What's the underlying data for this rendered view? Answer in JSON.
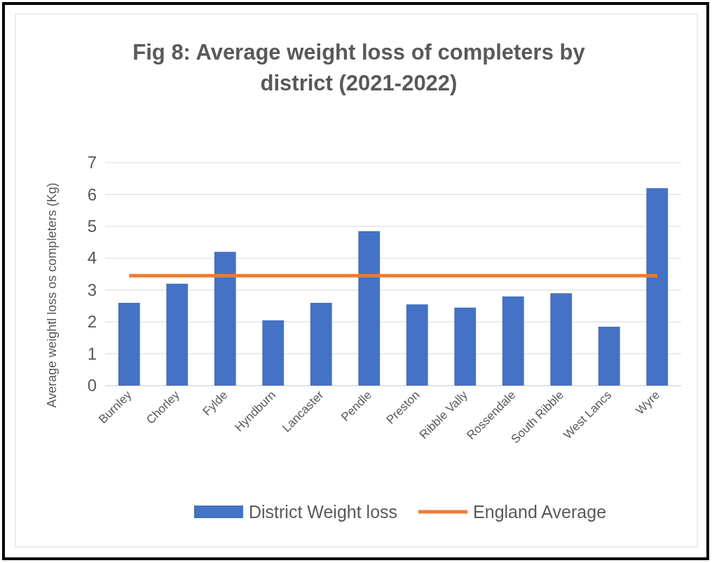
{
  "chart_data": {
    "type": "bar",
    "title": "Fig 8: Average weight loss of completers by district (2021-2022)",
    "ylabel": "Average weightl loss os completers (Kg)",
    "categories": [
      "Burnley",
      "Chorley",
      "Fylde",
      "Hyndburn",
      "Lancaster",
      "Pendle",
      "Preston",
      "Ribble Vally",
      "Rossendale",
      "South Ribble",
      "West Lancs",
      "Wyre"
    ],
    "series": [
      {
        "name": "District Weight loss",
        "color": "#4472c4",
        "values": [
          2.6,
          3.2,
          4.2,
          2.05,
          2.6,
          4.85,
          2.55,
          2.45,
          2.8,
          2.9,
          1.85,
          6.2
        ]
      },
      {
        "name": "England Average",
        "type": "line",
        "color": "#ed7d31",
        "values": [
          3.45,
          3.45,
          3.45,
          3.45,
          3.45,
          3.45,
          3.45,
          3.45,
          3.45,
          3.45,
          3.45,
          3.45
        ]
      }
    ],
    "ylim": [
      0,
      7
    ],
    "yticks": [
      0,
      1,
      2,
      3,
      4,
      5,
      6,
      7
    ],
    "grid": "y",
    "legend": "bottom"
  }
}
